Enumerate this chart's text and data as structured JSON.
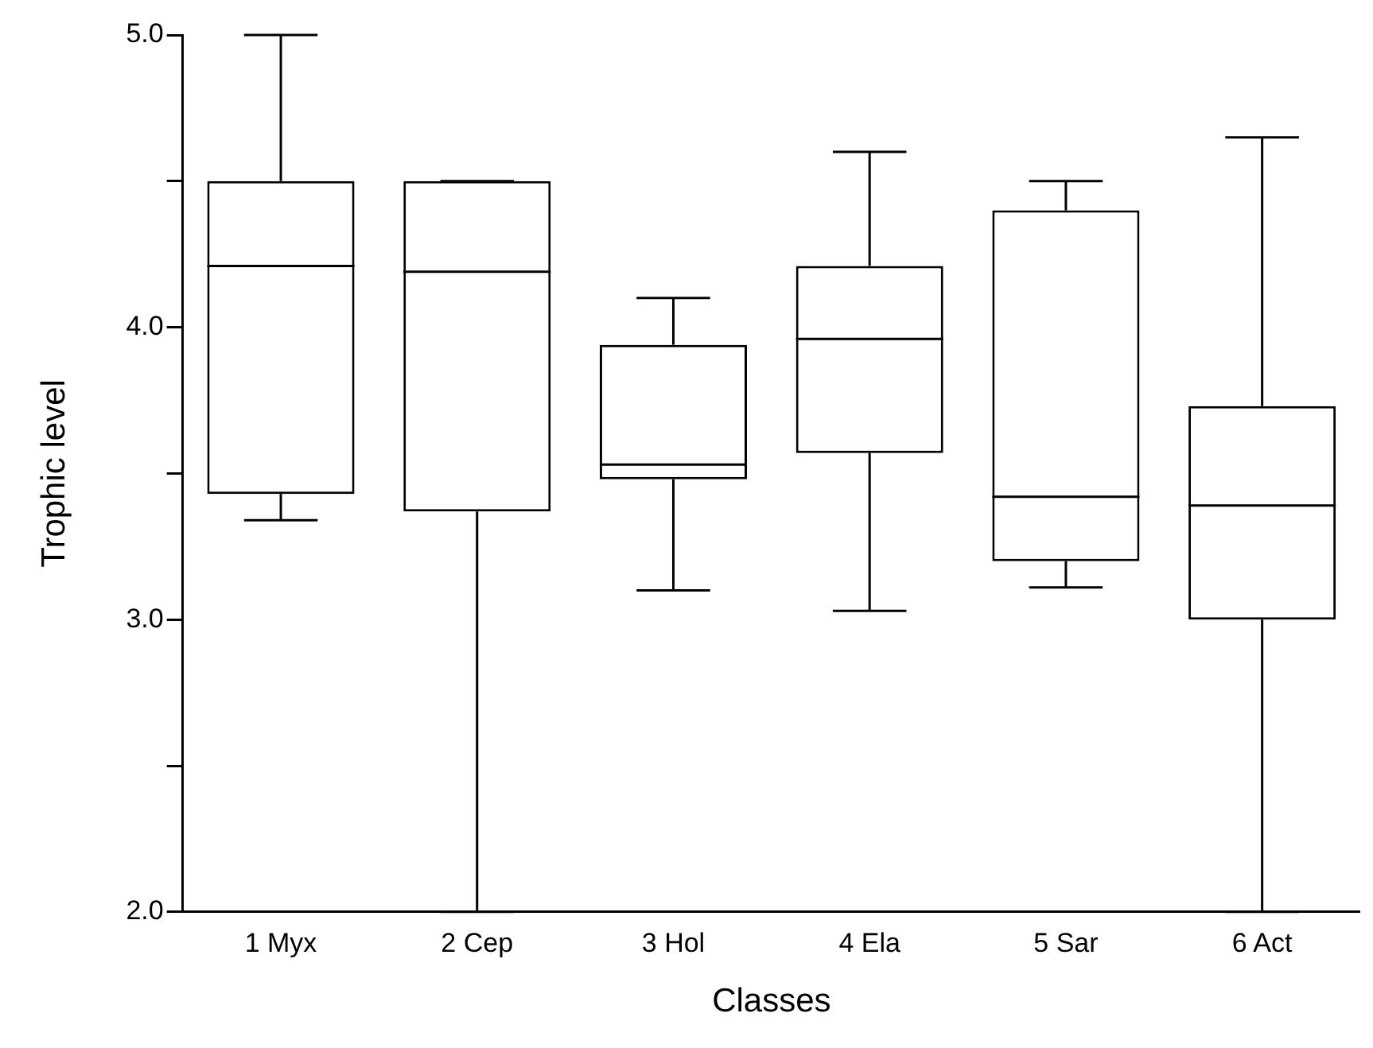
{
  "chart_data": {
    "type": "box",
    "xlabel": "Classes",
    "ylabel": "Trophic level",
    "categories": [
      "1 Myx",
      "2 Cep",
      "3 Hol",
      "4 Ela",
      "5 Sar",
      "6 Act"
    ],
    "boxes": [
      {
        "low": 3.34,
        "q1": 3.43,
        "median": 4.21,
        "q3": 4.5,
        "high": 5.0
      },
      {
        "low": 2.0,
        "q1": 3.37,
        "median": 4.19,
        "q3": 4.5,
        "high": 4.5
      },
      {
        "low": 3.1,
        "q1": 3.48,
        "median": 3.53,
        "q3": 3.94,
        "high": 4.1
      },
      {
        "low": 3.03,
        "q1": 3.57,
        "median": 3.96,
        "q3": 4.21,
        "high": 4.6
      },
      {
        "low": 3.11,
        "q1": 3.2,
        "median": 3.42,
        "q3": 4.4,
        "high": 4.5
      },
      {
        "low": 2.0,
        "q1": 3.0,
        "median": 3.39,
        "q3": 3.73,
        "high": 4.65
      }
    ],
    "color": "#000000",
    "ylim": [
      2.0,
      5.0
    ],
    "yticks": [
      {
        "value": 2,
        "label": "2.0"
      },
      {
        "value": 2.5,
        "label": null
      },
      {
        "value": 3,
        "label": "3.0"
      },
      {
        "value": 3.5,
        "label": null
      },
      {
        "value": 4,
        "label": "4.0"
      },
      {
        "value": 4.5,
        "label": null
      },
      {
        "value": 5,
        "label": "5.0"
      }
    ],
    "grid": false
  }
}
